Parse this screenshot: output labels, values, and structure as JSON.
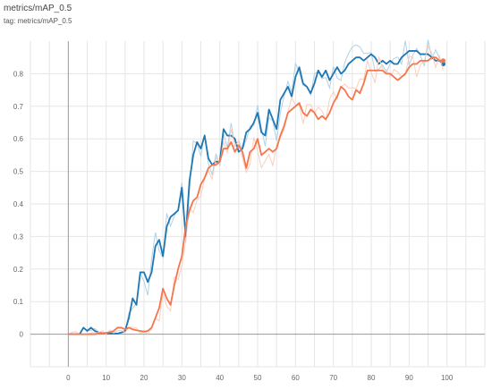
{
  "header": {
    "title": "metrics/mAP_0.5",
    "tag": "tag: metrics/mAP_0.5"
  },
  "chart_data": {
    "type": "line",
    "title": "metrics/mAP_0.5",
    "xlabel": "",
    "ylabel": "",
    "xlim": [
      -10,
      110
    ],
    "ylim": [
      -0.1,
      0.9
    ],
    "xticks": [
      0,
      10,
      20,
      30,
      40,
      50,
      60,
      70,
      80,
      90,
      100
    ],
    "yticks": [
      0,
      0.1,
      0.2,
      0.3,
      0.4,
      0.5,
      0.6,
      0.7,
      0.8
    ],
    "grid": true,
    "legend": "none",
    "colors": {
      "blue": "#1f77b4",
      "blue_raw": "#a6cee3",
      "orange": "#f4764d",
      "orange_raw": "#fcc9b6",
      "grid": "#e6e6e6",
      "axis": "#999999"
    },
    "series": [
      {
        "color": "blue",
        "x": [
          0,
          1,
          2,
          3,
          4,
          5,
          6,
          7,
          8,
          9,
          10,
          11,
          12,
          13,
          14,
          15,
          16,
          17,
          18,
          19,
          20,
          21,
          22,
          23,
          24,
          25,
          26,
          27,
          28,
          29,
          30,
          31,
          32,
          33,
          34,
          35,
          36,
          37,
          38,
          39,
          40,
          41,
          42,
          43,
          44,
          45,
          46,
          47,
          48,
          49,
          50,
          51,
          52,
          53,
          54,
          55,
          56,
          57,
          58,
          59,
          60,
          61,
          62,
          63,
          64,
          65,
          66,
          67,
          68,
          69,
          70,
          71,
          72,
          73,
          74,
          75,
          76,
          77,
          78,
          79,
          80,
          81,
          82,
          83,
          84,
          85,
          86,
          87,
          88,
          89,
          90,
          91,
          92,
          93,
          94,
          95,
          96,
          97,
          98,
          99
        ],
        "y": [
          0,
          0,
          0,
          0,
          0.02,
          0.01,
          0.02,
          0.01,
          0.005,
          0.003,
          0.002,
          0.002,
          0.002,
          0.002,
          0.005,
          0.01,
          0.05,
          0.11,
          0.09,
          0.19,
          0.19,
          0.16,
          0.19,
          0.27,
          0.29,
          0.24,
          0.33,
          0.36,
          0.37,
          0.38,
          0.45,
          0.3,
          0.47,
          0.55,
          0.59,
          0.57,
          0.61,
          0.54,
          0.52,
          0.53,
          0.53,
          0.63,
          0.61,
          0.61,
          0.6,
          0.56,
          0.57,
          0.62,
          0.63,
          0.65,
          0.68,
          0.62,
          0.61,
          0.69,
          0.66,
          0.63,
          0.72,
          0.74,
          0.76,
          0.73,
          0.79,
          0.82,
          0.77,
          0.76,
          0.74,
          0.77,
          0.81,
          0.79,
          0.81,
          0.78,
          0.8,
          0.82,
          0.8,
          0.81,
          0.83,
          0.84,
          0.85,
          0.85,
          0.84,
          0.85,
          0.86,
          0.85,
          0.83,
          0.84,
          0.83,
          0.84,
          0.83,
          0.83,
          0.85,
          0.86,
          0.87,
          0.87,
          0.87,
          0.86,
          0.86,
          0.86,
          0.85,
          0.84,
          0.84,
          0.83
        ]
      },
      {
        "color": "orange",
        "x": [
          0,
          1,
          2,
          3,
          4,
          5,
          6,
          7,
          8,
          9,
          10,
          11,
          12,
          13,
          14,
          15,
          16,
          17,
          18,
          19,
          20,
          21,
          22,
          23,
          24,
          25,
          26,
          27,
          28,
          29,
          30,
          31,
          32,
          33,
          34,
          35,
          36,
          37,
          38,
          39,
          40,
          41,
          42,
          43,
          44,
          45,
          46,
          47,
          48,
          49,
          50,
          51,
          52,
          53,
          54,
          55,
          56,
          57,
          58,
          59,
          60,
          61,
          62,
          63,
          64,
          65,
          66,
          67,
          68,
          69,
          70,
          71,
          72,
          73,
          74,
          75,
          76,
          77,
          78,
          79,
          80,
          81,
          82,
          83,
          84,
          85,
          86,
          87,
          88,
          89,
          90,
          91,
          92,
          93,
          94,
          95,
          96,
          97,
          98,
          99
        ],
        "y": [
          0,
          0,
          0,
          0,
          0,
          0,
          0,
          0,
          0.002,
          0.003,
          0.004,
          0.006,
          0.01,
          0.02,
          0.02,
          0.015,
          0.02,
          0.015,
          0.012,
          0.01,
          0.008,
          0.01,
          0.02,
          0.05,
          0.08,
          0.14,
          0.11,
          0.09,
          0.15,
          0.2,
          0.24,
          0.33,
          0.38,
          0.41,
          0.42,
          0.46,
          0.48,
          0.51,
          0.52,
          0.52,
          0.53,
          0.57,
          0.57,
          0.59,
          0.56,
          0.58,
          0.56,
          0.51,
          0.56,
          0.57,
          0.6,
          0.55,
          0.56,
          0.57,
          0.56,
          0.57,
          0.61,
          0.64,
          0.68,
          0.69,
          0.7,
          0.71,
          0.68,
          0.67,
          0.69,
          0.68,
          0.66,
          0.67,
          0.66,
          0.68,
          0.71,
          0.73,
          0.76,
          0.75,
          0.73,
          0.72,
          0.75,
          0.74,
          0.77,
          0.81,
          0.81,
          0.81,
          0.81,
          0.81,
          0.8,
          0.8,
          0.79,
          0.78,
          0.79,
          0.8,
          0.82,
          0.83,
          0.83,
          0.84,
          0.84,
          0.84,
          0.85,
          0.85,
          0.84,
          0.84
        ]
      }
    ]
  }
}
